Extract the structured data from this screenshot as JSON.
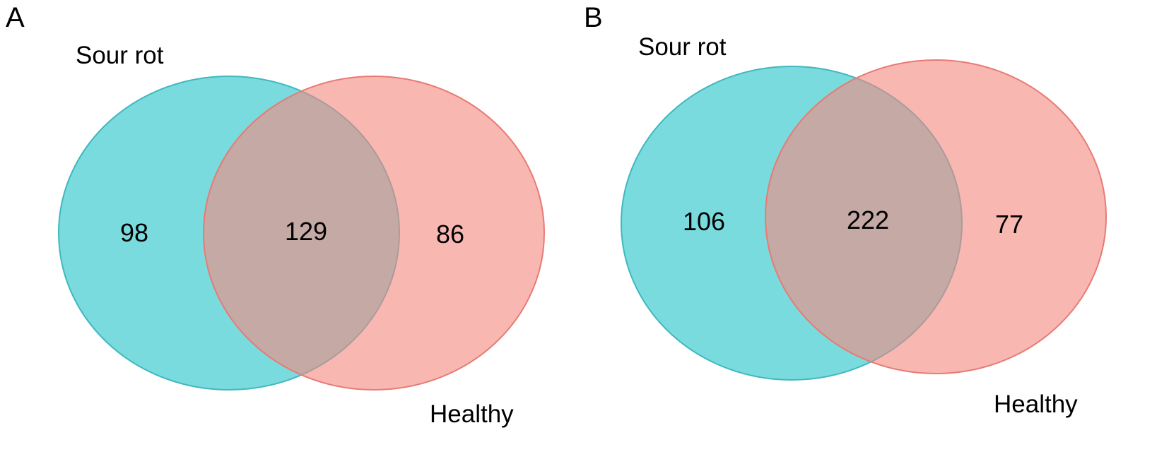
{
  "colors": {
    "sour_rot_fill": "#7ADBDF",
    "sour_rot_stroke": "#3FB8BE",
    "healthy_fill": "#F5877F",
    "healthy_stroke": "#E87A74",
    "overlap_fill": "#B8A09D"
  },
  "panels": [
    {
      "letter": "A",
      "set_labels": {
        "left": "Sour rot",
        "right": "Healthy"
      },
      "counts": {
        "left_only": "98",
        "overlap": "129",
        "right_only": "86"
      }
    },
    {
      "letter": "B",
      "set_labels": {
        "left": "Sour rot",
        "right": "Healthy"
      },
      "counts": {
        "left_only": "106",
        "overlap": "222",
        "right_only": "77"
      }
    }
  ]
}
